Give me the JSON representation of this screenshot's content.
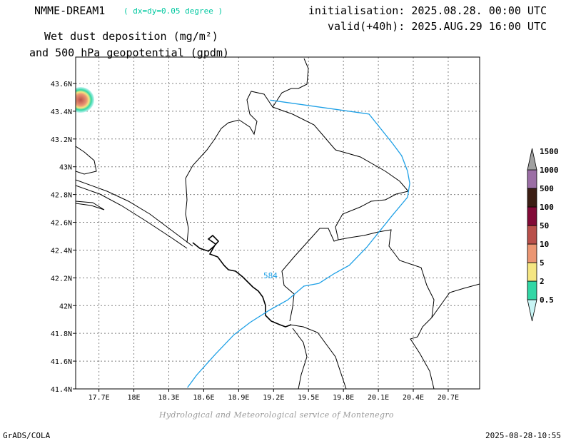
{
  "header": {
    "model": "NMME-DREAM1",
    "resolution": "( dx=dy=0.05 degree )",
    "init": "initialisation: 2025.08.28. 00:00 UTC",
    "valid": "valid(+40h): 2025.AUG.29 16:00 UTC",
    "title_line1": "Wet dust deposition (mg/m²)",
    "title_line2": "and 500 hPa geopotential (gpdm)"
  },
  "map": {
    "lon_range": [
      17.5,
      20.97
    ],
    "lat_range": [
      41.4,
      43.79
    ],
    "lon_ticks": [
      17.7,
      18.0,
      18.3,
      18.6,
      18.9,
      19.2,
      19.5,
      19.8,
      20.1,
      20.4,
      20.7
    ],
    "lat_ticks": [
      41.4,
      41.6,
      41.8,
      42.0,
      42.2,
      42.4,
      42.6,
      42.8,
      43.0,
      43.2,
      43.4,
      43.6
    ],
    "lon_labels": [
      "17.7E",
      "18E",
      "18.3E",
      "18.6E",
      "18.9E",
      "19.2E",
      "19.5E",
      "19.8E",
      "20.1E",
      "20.4E",
      "20.7E"
    ],
    "lat_labels": [
      "41.4N",
      "41.6N",
      "41.8N",
      "42N",
      "42.2N",
      "42.4N",
      "42.6N",
      "42.8N",
      "43N",
      "43.2N",
      "43.4N",
      "43.6N"
    ],
    "grid": true,
    "contour_label": "584",
    "contour_color": "#1ea0e6",
    "contour_584": [
      [
        19.17,
        43.48
      ],
      [
        20.02,
        43.38
      ],
      [
        20.22,
        43.17
      ],
      [
        20.3,
        43.08
      ],
      [
        20.35,
        42.97
      ],
      [
        20.37,
        42.88
      ],
      [
        20.35,
        42.78
      ],
      [
        20.22,
        42.65
      ],
      [
        20.0,
        42.42
      ],
      [
        19.85,
        42.29
      ],
      [
        19.72,
        42.23
      ],
      [
        19.59,
        42.16
      ]
    ],
    "contour_584_lower": [
      [
        19.59,
        42.16
      ],
      [
        19.46,
        42.14
      ],
      [
        19.32,
        42.04
      ],
      [
        19.17,
        41.97
      ],
      [
        19.0,
        41.88
      ],
      [
        18.86,
        41.79
      ],
      [
        18.7,
        41.65
      ],
      [
        18.54,
        41.5
      ],
      [
        18.46,
        41.41
      ]
    ],
    "dust_blob_center": [
      17.52,
      43.5
    ]
  },
  "colorbar": {
    "labels": [
      "0.5",
      "2",
      "5",
      "10",
      "50",
      "100",
      "500",
      "1000",
      "1500"
    ],
    "colors": [
      "#c8f5f5",
      "#32d7a5",
      "#f5e682",
      "#eb9673",
      "#b9504b",
      "#820a37",
      "#3c1e14",
      "#9b6ea5",
      "#a0a0a0"
    ]
  },
  "footer": {
    "credit": "Hydrological and Meteorological service of Montenegro",
    "grads": "GrADS/COLA",
    "timestamp": "2025-08-28-10:55"
  }
}
